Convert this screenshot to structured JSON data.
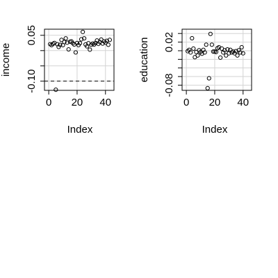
{
  "chart_data": [
    {
      "type": "scatter",
      "xlabel": "Index",
      "ylabel": "income",
      "xlim": [
        -3,
        46
      ],
      "ylim": [
        -0.13,
        0.07
      ],
      "xticks": [
        0,
        20,
        40
      ],
      "yticks": [
        -0.1,
        0.05
      ],
      "ytick_labels": [
        "-0.10",
        "0.05"
      ],
      "minor_yticks": [
        -0.05,
        0.0
      ],
      "grid": true,
      "hline": {
        "y": -0.1,
        "style": "dashed"
      },
      "points": [
        {
          "x": 1,
          "y": 0.021
        },
        {
          "x": 2,
          "y": 0.018
        },
        {
          "x": 3,
          "y": 0.022
        },
        {
          "x": 4,
          "y": 0.025
        },
        {
          "x": 5,
          "y": -0.128
        },
        {
          "x": 6,
          "y": 0.021
        },
        {
          "x": 7,
          "y": 0.012
        },
        {
          "x": 8,
          "y": 0.019
        },
        {
          "x": 9,
          "y": 0.035
        },
        {
          "x": 10,
          "y": 0.018
        },
        {
          "x": 11,
          "y": 0.028
        },
        {
          "x": 12,
          "y": 0.04
        },
        {
          "x": 13,
          "y": 0.026
        },
        {
          "x": 14,
          "y": 0.004
        },
        {
          "x": 15,
          "y": 0.029
        },
        {
          "x": 16,
          "y": 0.03
        },
        {
          "x": 17,
          "y": 0.024
        },
        {
          "x": 18,
          "y": 0.02
        },
        {
          "x": 19,
          "y": -0.006
        },
        {
          "x": 20,
          "y": 0.025
        },
        {
          "x": 21,
          "y": 0.018
        },
        {
          "x": 22,
          "y": 0.024
        },
        {
          "x": 23,
          "y": 0.037
        },
        {
          "x": 24,
          "y": 0.061
        },
        {
          "x": 25,
          "y": 0.04
        },
        {
          "x": 26,
          "y": 0.02
        },
        {
          "x": 27,
          "y": 0.014
        },
        {
          "x": 28,
          "y": 0.024
        },
        {
          "x": 29,
          "y": 0.003
        },
        {
          "x": 30,
          "y": 0.019
        },
        {
          "x": 31,
          "y": 0.023
        },
        {
          "x": 32,
          "y": 0.02
        },
        {
          "x": 33,
          "y": 0.025
        },
        {
          "x": 34,
          "y": 0.033
        },
        {
          "x": 35,
          "y": 0.022
        },
        {
          "x": 36,
          "y": 0.028
        },
        {
          "x": 37,
          "y": 0.036
        },
        {
          "x": 38,
          "y": 0.023
        },
        {
          "x": 39,
          "y": 0.03
        },
        {
          "x": 40,
          "y": 0.026
        },
        {
          "x": 41,
          "y": 0.032
        },
        {
          "x": 42,
          "y": 0.019
        },
        {
          "x": 43,
          "y": 0.035
        }
      ]
    },
    {
      "type": "scatter",
      "xlabel": "Index",
      "ylabel": "education",
      "xlim": [
        -3,
        46
      ],
      "ylim": [
        -0.092,
        0.05
      ],
      "xticks": [
        0,
        20,
        40
      ],
      "yticks": [
        -0.08,
        0.02
      ],
      "ytick_labels": [
        "-0.08",
        "0.02"
      ],
      "minor_yticks": [
        -0.06,
        -0.04,
        -0.02,
        0.0,
        0.04
      ],
      "grid": true,
      "points": [
        {
          "x": 1,
          "y": -0.001
        },
        {
          "x": 2,
          "y": 0.002
        },
        {
          "x": 3,
          "y": -0.004
        },
        {
          "x": 4,
          "y": 0.029
        },
        {
          "x": 5,
          "y": 0.005
        },
        {
          "x": 6,
          "y": -0.015
        },
        {
          "x": 7,
          "y": -0.003
        },
        {
          "x": 8,
          "y": -0.011
        },
        {
          "x": 9,
          "y": 0.001
        },
        {
          "x": 10,
          "y": -0.003
        },
        {
          "x": 11,
          "y": -0.007
        },
        {
          "x": 12,
          "y": 0.002
        },
        {
          "x": 13,
          "y": -0.004
        },
        {
          "x": 14,
          "y": 0.014
        },
        {
          "x": 15,
          "y": -0.087
        },
        {
          "x": 16,
          "y": -0.064
        },
        {
          "x": 17,
          "y": 0.039
        },
        {
          "x": 18,
          "y": 0.014
        },
        {
          "x": 19,
          "y": -0.002
        },
        {
          "x": 20,
          "y": -0.002
        },
        {
          "x": 21,
          "y": -0.003
        },
        {
          "x": 22,
          "y": 0.006
        },
        {
          "x": 23,
          "y": 0.008
        },
        {
          "x": 24,
          "y": -0.016
        },
        {
          "x": 25,
          "y": 0.005
        },
        {
          "x": 26,
          "y": -0.004
        },
        {
          "x": 27,
          "y": 0.001
        },
        {
          "x": 28,
          "y": -0.011
        },
        {
          "x": 29,
          "y": 0.003
        },
        {
          "x": 30,
          "y": -0.006
        },
        {
          "x": 31,
          "y": 0.002
        },
        {
          "x": 32,
          "y": -0.004
        },
        {
          "x": 33,
          "y": -0.002
        },
        {
          "x": 34,
          "y": -0.006
        },
        {
          "x": 35,
          "y": -0.001
        },
        {
          "x": 36,
          "y": -0.011
        },
        {
          "x": 37,
          "y": 0.001
        },
        {
          "x": 38,
          "y": -0.004
        },
        {
          "x": 39,
          "y": 0.008
        },
        {
          "x": 40,
          "y": -0.006
        }
      ]
    }
  ]
}
